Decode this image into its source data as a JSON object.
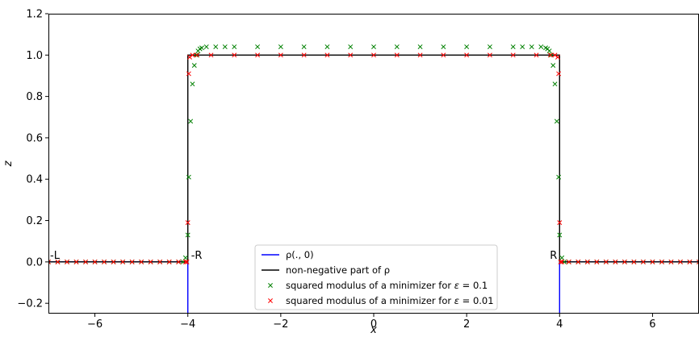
{
  "chart_data": {
    "type": "line",
    "title": "",
    "xlabel": "x",
    "ylabel": "z",
    "xlim": [
      -7,
      7
    ],
    "ylim": [
      -0.25,
      1.2
    ],
    "xticks": [
      -6,
      -4,
      -2,
      0,
      2,
      4,
      6
    ],
    "xtick_labels": [
      "−6",
      "−4",
      "−2",
      "0",
      "2",
      "4",
      "6"
    ],
    "yticks": [
      -0.2,
      0.0,
      0.2,
      0.4,
      0.6,
      0.8,
      1.0,
      1.2
    ],
    "ytick_labels": [
      "−0.2",
      "0.0",
      "0.2",
      "0.4",
      "0.6",
      "0.8",
      "1.0",
      "1.2"
    ],
    "grid": false,
    "legend_position": "bottom-center",
    "annotations": [
      {
        "text": "-L",
        "x": -7,
        "y": 0.0
      },
      {
        "text": "-R",
        "x": -4,
        "y": 0.0
      },
      {
        "text": "R",
        "x": 4,
        "y": 0.0
      }
    ],
    "series": [
      {
        "name": "ρ(., 0)",
        "legend_label": {
          "pre": "ρ(., 0)",
          "italic": "",
          "post": ""
        },
        "kind": "line",
        "color": "#0000ff",
        "x": [
          -7,
          -4,
          -4,
          4,
          4,
          7
        ],
        "y": [
          0,
          0,
          -0.25,
          -0.25,
          0,
          0
        ]
      },
      {
        "name": "non-negative part of ρ",
        "legend_label": {
          "pre": "non-negative part of ρ",
          "italic": "",
          "post": ""
        },
        "kind": "line",
        "color": "#000000",
        "x": [
          -7,
          -4,
          -4,
          4,
          4,
          7
        ],
        "y": [
          0,
          0,
          1,
          1,
          0,
          0
        ]
      },
      {
        "name": "squared modulus of a minimizer for ε = 0.1",
        "legend_label": {
          "pre": "squared modulus of a minimizer for ",
          "italic": "ε",
          "post": " = 0.1"
        },
        "kind": "scatter",
        "marker": "x",
        "color": "#008000",
        "x": [
          -7.0,
          -6.8,
          -6.6,
          -6.4,
          -6.2,
          -6.0,
          -5.8,
          -5.6,
          -5.4,
          -5.2,
          -5.0,
          -4.8,
          -4.6,
          -4.4,
          -4.2,
          -4.1,
          -4.05,
          -4.0,
          -3.98,
          -3.94,
          -3.9,
          -3.86,
          -3.82,
          -3.78,
          -3.74,
          -3.7,
          -3.6,
          -3.4,
          -3.2,
          -3.0,
          -2.5,
          -2.0,
          -1.5,
          -1.0,
          -0.5,
          0.0,
          0.5,
          1.0,
          1.5,
          2.0,
          2.5,
          3.0,
          3.2,
          3.4,
          3.6,
          3.7,
          3.74,
          3.78,
          3.82,
          3.86,
          3.9,
          3.94,
          3.98,
          4.0,
          4.05,
          4.1,
          4.2,
          4.4,
          4.6,
          4.8,
          5.0,
          5.2,
          5.4,
          5.6,
          5.8,
          6.0,
          6.2,
          6.4,
          6.6,
          6.8,
          7.0
        ],
        "y": [
          0.0,
          0.0,
          0.0,
          0.0,
          0.0,
          0.0,
          0.0,
          0.0,
          0.0,
          0.0,
          0.0,
          0.0,
          0.0,
          0.0,
          0.0,
          0.0,
          0.02,
          0.13,
          0.41,
          0.68,
          0.86,
          0.95,
          1.0,
          1.02,
          1.03,
          1.035,
          1.04,
          1.04,
          1.04,
          1.04,
          1.04,
          1.04,
          1.04,
          1.04,
          1.04,
          1.04,
          1.04,
          1.04,
          1.04,
          1.04,
          1.04,
          1.04,
          1.04,
          1.04,
          1.04,
          1.035,
          1.03,
          1.02,
          1.0,
          0.95,
          0.86,
          0.68,
          0.41,
          0.13,
          0.02,
          0.0,
          0.0,
          0.0,
          0.0,
          0.0,
          0.0,
          0.0,
          0.0,
          0.0,
          0.0,
          0.0,
          0.0,
          0.0,
          0.0,
          0.0,
          0.0
        ]
      },
      {
        "name": "squared modulus of a minimizer for ε = 0.01",
        "legend_label": {
          "pre": "squared modulus of a minimizer for ",
          "italic": "ε",
          "post": " = 0.01"
        },
        "kind": "scatter",
        "marker": "x",
        "color": "#ff0000",
        "x": [
          -7.0,
          -6.8,
          -6.6,
          -6.4,
          -6.2,
          -6.0,
          -5.8,
          -5.6,
          -5.4,
          -5.2,
          -5.0,
          -4.8,
          -4.6,
          -4.4,
          -4.2,
          -4.05,
          -4.02,
          -4.0,
          -3.98,
          -3.96,
          -3.9,
          -3.8,
          -3.5,
          -3.0,
          -2.5,
          -2.0,
          -1.5,
          -1.0,
          -0.5,
          0.0,
          0.5,
          1.0,
          1.5,
          2.0,
          2.5,
          3.0,
          3.5,
          3.8,
          3.9,
          3.96,
          3.98,
          4.0,
          4.02,
          4.05,
          4.2,
          4.4,
          4.6,
          4.8,
          5.0,
          5.2,
          5.4,
          5.6,
          5.8,
          6.0,
          6.2,
          6.4,
          6.6,
          6.8,
          7.0
        ],
        "y": [
          0.0,
          0.0,
          0.0,
          0.0,
          0.0,
          0.0,
          0.0,
          0.0,
          0.0,
          0.0,
          0.0,
          0.0,
          0.0,
          0.0,
          0.0,
          0.0,
          0.0,
          0.19,
          0.91,
          0.99,
          1.0,
          1.0,
          1.0,
          1.0,
          1.0,
          1.0,
          1.0,
          1.0,
          1.0,
          1.0,
          1.0,
          1.0,
          1.0,
          1.0,
          1.0,
          1.0,
          1.0,
          1.0,
          1.0,
          0.99,
          0.91,
          0.19,
          0.0,
          0.0,
          0.0,
          0.0,
          0.0,
          0.0,
          0.0,
          0.0,
          0.0,
          0.0,
          0.0,
          0.0,
          0.0,
          0.0,
          0.0,
          0.0,
          0.0
        ]
      }
    ]
  }
}
